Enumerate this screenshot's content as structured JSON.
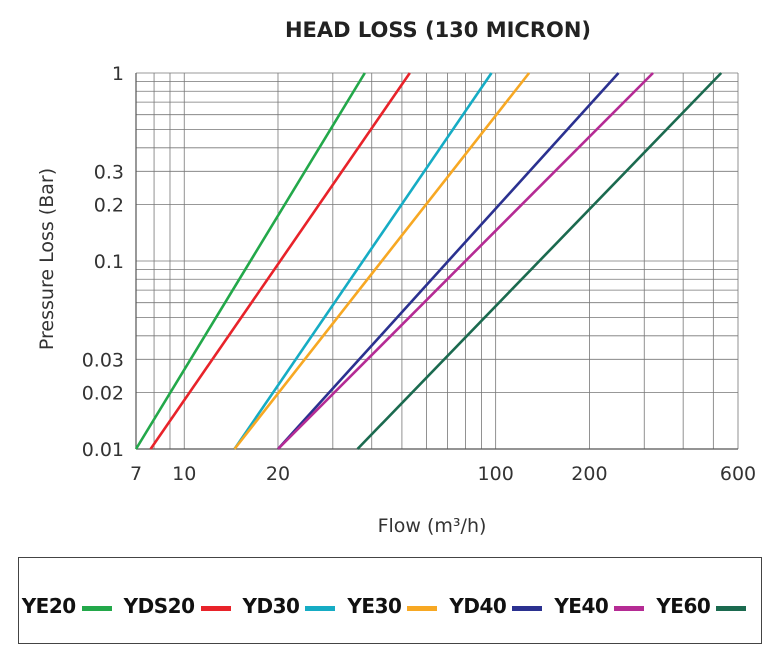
{
  "chart_data": {
    "type": "line",
    "title": "HEAD LOSS (130 MICRON)",
    "xlabel": "Flow (m³/h)",
    "ylabel": "Pressure Loss (Bar)",
    "xscale": "log",
    "yscale": "log",
    "xlim": [
      7,
      600
    ],
    "ylim": [
      0.01,
      1
    ],
    "xticks": [
      7,
      10,
      20,
      100,
      200,
      600
    ],
    "xtick_labels": [
      "7",
      "10",
      "20",
      "100",
      "200",
      "600"
    ],
    "yticks": [
      0.01,
      0.02,
      0.03,
      0.1,
      0.2,
      0.3,
      1
    ],
    "ytick_labels": [
      "0.01",
      "0.02",
      "0.03",
      "0.1",
      "0.2",
      "0.3",
      "1"
    ],
    "grid": true,
    "legend_position": "bottom",
    "series": [
      {
        "name": "YE20",
        "color": "#23a84a",
        "x": [
          7.0,
          38.0
        ],
        "y": [
          0.01,
          1
        ]
      },
      {
        "name": "YDS20",
        "color": "#e8232a",
        "x": [
          7.8,
          53.0
        ],
        "y": [
          0.01,
          1
        ]
      },
      {
        "name": "YD30",
        "color": "#16acc4",
        "x": [
          14.5,
          97.0
        ],
        "y": [
          0.01,
          1
        ]
      },
      {
        "name": "YE30",
        "color": "#f7a823",
        "x": [
          14.5,
          128.0
        ],
        "y": [
          0.01,
          1
        ]
      },
      {
        "name": "YD40",
        "color": "#2b3190",
        "x": [
          20.0,
          248.0
        ],
        "y": [
          0.01,
          1
        ]
      },
      {
        "name": "YE40",
        "color": "#b52b94",
        "x": [
          20.0,
          320.0
        ],
        "y": [
          0.01,
          1
        ]
      },
      {
        "name": "YE60",
        "color": "#1b6a4f",
        "x": [
          36.0,
          530.0
        ],
        "y": [
          0.01,
          1
        ]
      }
    ]
  }
}
